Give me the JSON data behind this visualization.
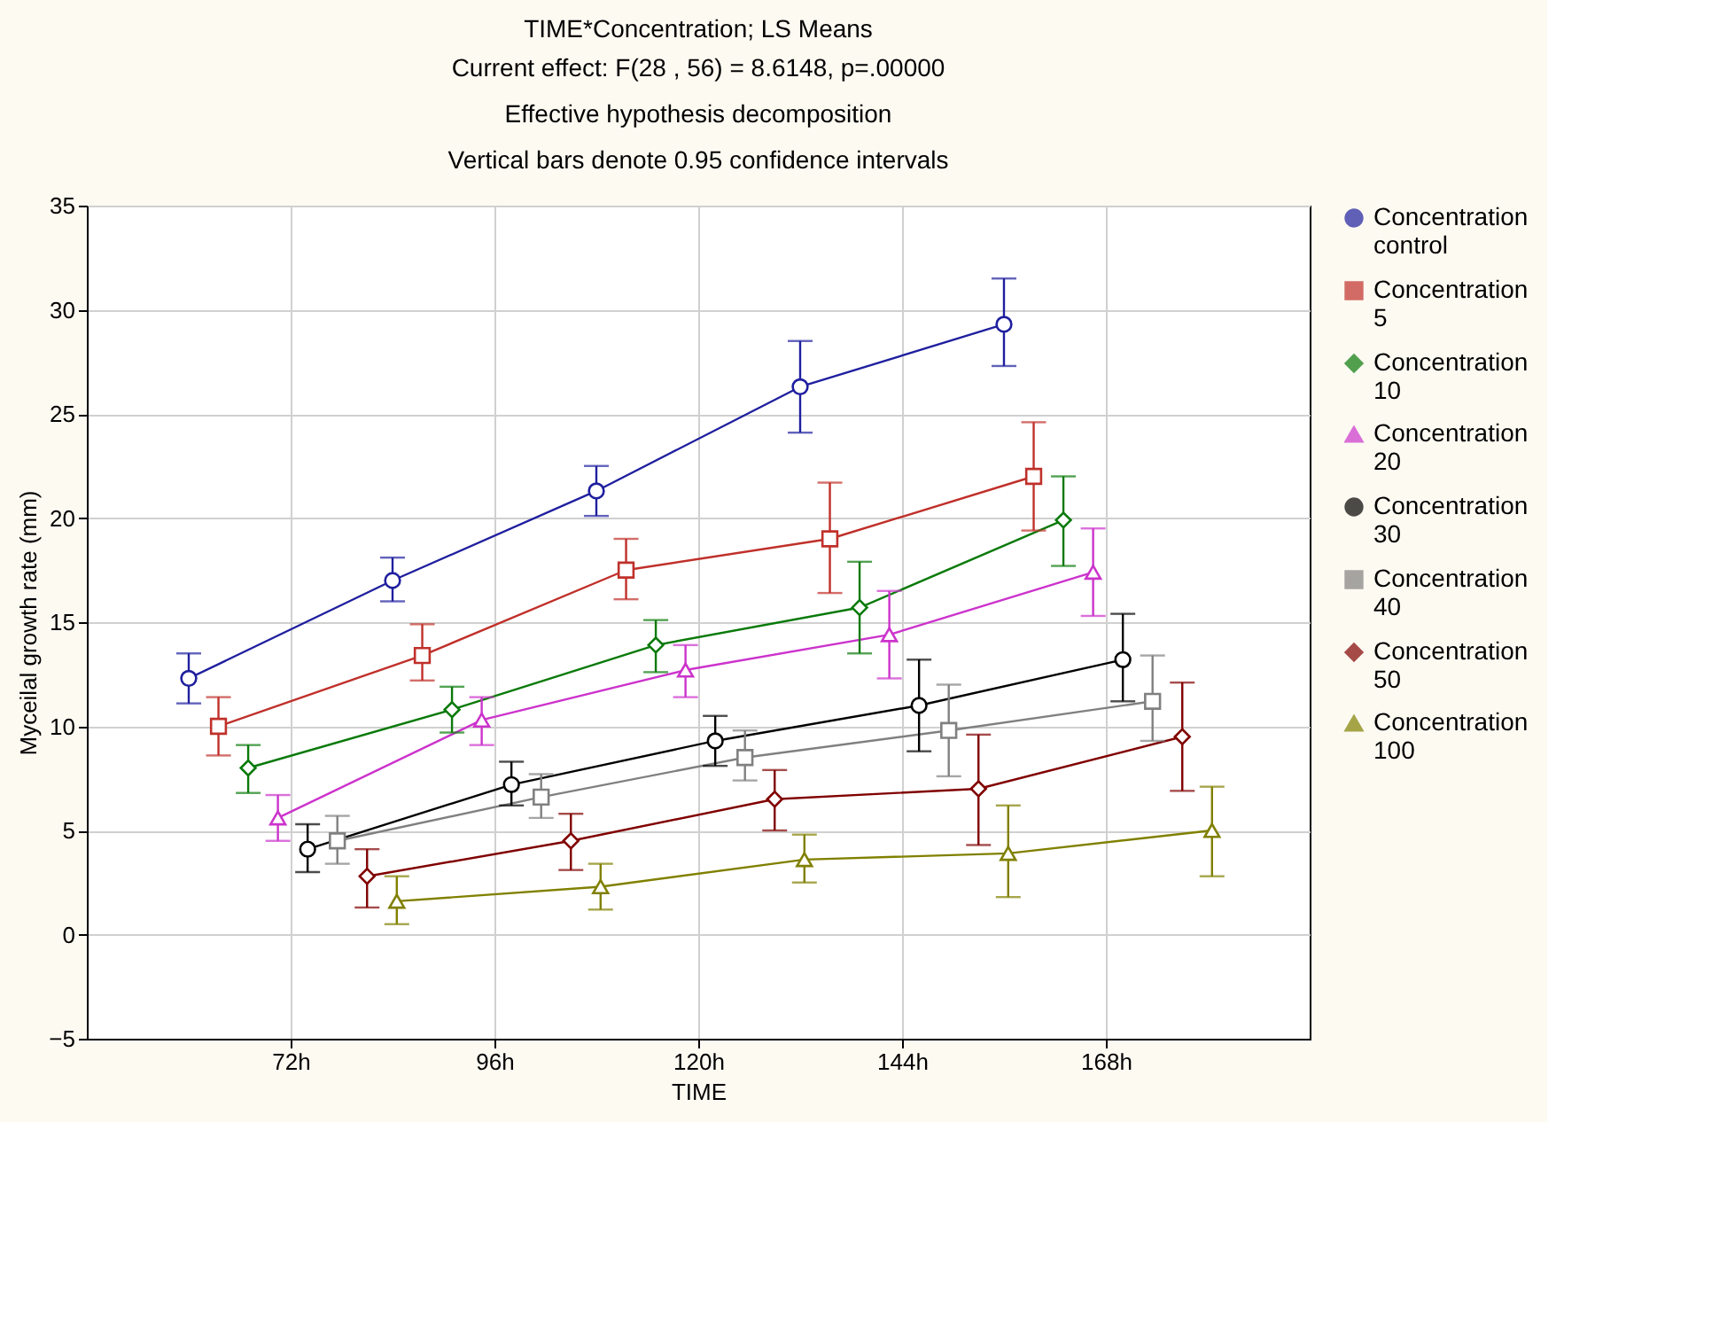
{
  "chart_data": {
    "type": "line",
    "title": "TIME*Concentration; LS Means",
    "subtitle": "Current effect: F(28 , 56) = 8.6148, p=.00000",
    "annotations": [
      "Effective hypothesis decomposition",
      "Vertical bars denote 0.95 confidence intervals"
    ],
    "xlabel": "TIME",
    "ylabel": "Myceilal growth rate (mm)",
    "xlim": [
      48,
      192
    ],
    "xticks": [
      {
        "value": 72,
        "label": "72h"
      },
      {
        "value": 96,
        "label": "96h"
      },
      {
        "value": 120,
        "label": "120h"
      },
      {
        "value": 144,
        "label": "144h"
      },
      {
        "value": 168,
        "label": "168h"
      }
    ],
    "ylim": [
      -5,
      35
    ],
    "yticks": [
      -5,
      0,
      5,
      10,
      15,
      20,
      25,
      30,
      35
    ],
    "grid": true,
    "legend": "right",
    "series": [
      {
        "name": "Concentration control",
        "color": "#1f1f9f",
        "marker": "circle",
        "x": [
          60,
          84,
          108,
          132,
          156
        ],
        "values": [
          12.3,
          17.0,
          21.3,
          26.3,
          29.3
        ],
        "errors": [
          [
            11.1,
            13.5
          ],
          [
            16.0,
            18.1
          ],
          [
            20.1,
            22.5
          ],
          [
            24.1,
            28.5
          ],
          [
            27.3,
            31.5
          ]
        ]
      },
      {
        "name": "Concentration 5",
        "color": "#c0302a",
        "marker": "square",
        "x": [
          63.5,
          87.5,
          111.5,
          135.5,
          159.5
        ],
        "values": [
          10.0,
          13.4,
          17.5,
          19.0,
          22.0
        ],
        "errors": [
          [
            8.6,
            11.4
          ],
          [
            12.2,
            14.9
          ],
          [
            16.1,
            19.0
          ],
          [
            16.4,
            21.7
          ],
          [
            19.4,
            24.6
          ]
        ]
      },
      {
        "name": "Concentration 10",
        "color": "#0a7a0a",
        "marker": "diamond",
        "x": [
          67,
          91,
          115,
          139,
          163
        ],
        "values": [
          8.0,
          10.8,
          13.9,
          15.7,
          19.9
        ],
        "errors": [
          [
            6.8,
            9.1
          ],
          [
            9.7,
            11.9
          ],
          [
            12.6,
            15.1
          ],
          [
            13.5,
            17.9
          ],
          [
            17.7,
            22.0
          ]
        ]
      },
      {
        "name": "Concentration 20",
        "color": "#cc33cc",
        "marker": "triangle",
        "x": [
          70.5,
          94.5,
          118.5,
          142.5,
          166.5
        ],
        "values": [
          5.6,
          10.3,
          12.7,
          14.4,
          17.4
        ],
        "errors": [
          [
            4.5,
            6.7
          ],
          [
            9.1,
            11.4
          ],
          [
            11.4,
            13.9
          ],
          [
            12.3,
            16.5
          ],
          [
            15.3,
            19.5
          ]
        ]
      },
      {
        "name": "Concentration 30",
        "color": "#000000",
        "marker": "circle",
        "x": [
          74,
          98,
          122,
          146,
          170
        ],
        "values": [
          4.1,
          7.2,
          9.3,
          11.0,
          13.2
        ],
        "errors": [
          [
            3.0,
            5.3
          ],
          [
            6.2,
            8.3
          ],
          [
            8.1,
            10.5
          ],
          [
            8.8,
            13.2
          ],
          [
            11.2,
            15.4
          ]
        ]
      },
      {
        "name": "Concentration 40",
        "color": "#808080",
        "marker": "square",
        "x": [
          77.5,
          101.5,
          125.5,
          149.5,
          173.5
        ],
        "values": [
          4.5,
          6.6,
          8.5,
          9.8,
          11.2
        ],
        "errors": [
          [
            3.4,
            5.7
          ],
          [
            5.6,
            7.7
          ],
          [
            7.4,
            9.8
          ],
          [
            7.6,
            12.0
          ],
          [
            9.3,
            13.4
          ]
        ]
      },
      {
        "name": "Concentration 50",
        "color": "#800000",
        "marker": "diamond",
        "x": [
          81,
          105,
          129,
          153,
          177
        ],
        "values": [
          2.8,
          4.5,
          6.5,
          7.0,
          9.5
        ],
        "errors": [
          [
            1.3,
            4.1
          ],
          [
            3.1,
            5.8
          ],
          [
            5.0,
            7.9
          ],
          [
            4.3,
            9.6
          ],
          [
            6.9,
            12.1
          ]
        ]
      },
      {
        "name": "Concentration 100",
        "color": "#808000",
        "marker": "triangle",
        "x": [
          84.5,
          108.5,
          132.5,
          156.5,
          180.5
        ],
        "values": [
          1.6,
          2.3,
          3.6,
          3.9,
          5.0
        ],
        "errors": [
          [
            0.5,
            2.8
          ],
          [
            1.2,
            3.4
          ],
          [
            2.5,
            4.8
          ],
          [
            1.8,
            6.2
          ],
          [
            2.8,
            7.1
          ]
        ]
      }
    ]
  }
}
